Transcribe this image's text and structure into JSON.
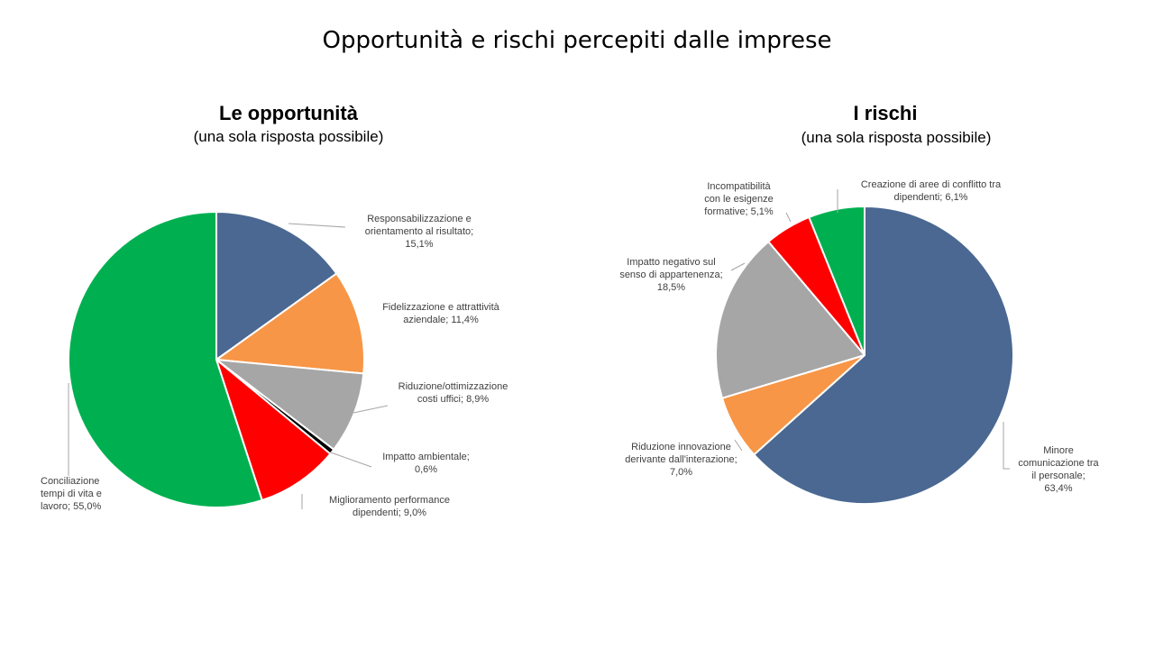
{
  "slide_title": "Opportunità e rischi percepiti dalle imprese",
  "colors": {
    "blue": "#4a6891",
    "orange": "#f79646",
    "gray": "#a6a6a6",
    "black": "#000000",
    "red": "#ff0000",
    "green": "#00b050",
    "leader": "#a6a6a6"
  },
  "chart_data": [
    {
      "type": "pie",
      "title": "Le opportunità",
      "subtitle": "(una sola risposta possibile)",
      "slices": [
        {
          "label_lines": [
            "Responsabilizzazione e",
            "orientamento al risultato;",
            "15,1%"
          ],
          "value": 15.1,
          "color": "#4a6891"
        },
        {
          "label_lines": [
            "Fidelizzazione e attrattività",
            "aziendale; 11,4%"
          ],
          "value": 11.4,
          "color": "#f79646"
        },
        {
          "label_lines": [
            "Riduzione/ottimizzazione",
            "costi uffici; 8,9%"
          ],
          "value": 8.9,
          "color": "#a6a6a6"
        },
        {
          "label_lines": [
            "Impatto ambientale;",
            "0,6%"
          ],
          "value": 0.6,
          "color": "#000000"
        },
        {
          "label_lines": [
            "Miglioramento performance",
            "dipendenti; 9,0%"
          ],
          "value": 9.0,
          "color": "#ff0000"
        },
        {
          "label_lines": [
            "Conciliazione",
            "tempi di vita e",
            "lavoro; 55,0%"
          ],
          "value": 55.0,
          "color": "#00b050"
        }
      ]
    },
    {
      "type": "pie",
      "title": "I rischi",
      "subtitle": "(una sola risposta possibile)",
      "slices": [
        {
          "label_lines": [
            "Minore",
            "comunicazione tra",
            "il personale;",
            "63,4%"
          ],
          "value": 63.4,
          "color": "#4a6891"
        },
        {
          "label_lines": [
            "Riduzione innovazione",
            "derivante dall'interazione;",
            "7,0%"
          ],
          "value": 7.0,
          "color": "#f79646"
        },
        {
          "label_lines": [
            "Impatto negativo sul",
            "senso di appartenenza;",
            "18,5%"
          ],
          "value": 18.5,
          "color": "#a6a6a6"
        },
        {
          "label_lines": [
            "Incompatibilità",
            "con le esigenze",
            "formative; 5,1%"
          ],
          "value": 5.1,
          "color": "#ff0000"
        },
        {
          "label_lines": [
            "Creazione di aree di conflitto tra",
            "dipendenti; 6,1%"
          ],
          "value": 6.1,
          "color": "#00b050"
        }
      ]
    }
  ]
}
